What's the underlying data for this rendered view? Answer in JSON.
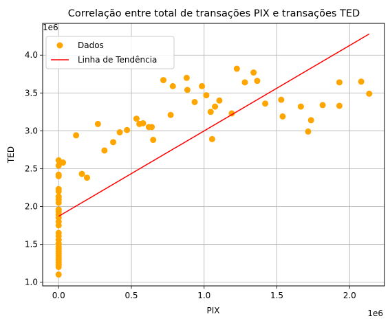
{
  "chart_data": {
    "type": "scatter",
    "title": "Correlação entre total de transações PIX e transações TED",
    "xlabel": "PIX",
    "ylabel": "TED",
    "x_offset_text": "1e6",
    "y_offset_text": "1e6",
    "xlim": [
      -110000,
      2240000
    ],
    "ylim": [
      950000,
      4420000
    ],
    "xticks": [
      0,
      500000,
      1000000,
      1500000,
      2000000
    ],
    "xtick_labels": [
      "0.0",
      "0.5",
      "1.0",
      "1.5",
      "2.0"
    ],
    "yticks": [
      1000000,
      1500000,
      2000000,
      2500000,
      3000000,
      3500000,
      4000000
    ],
    "ytick_labels": [
      "1.0",
      "1.5",
      "2.0",
      "2.5",
      "3.0",
      "3.5",
      "4.0"
    ],
    "grid": true,
    "legend_position": "top-left",
    "series": [
      {
        "name": "Dados",
        "kind": "scatter",
        "color": "#FFA500",
        "points": [
          [
            0,
            1100000
          ],
          [
            0,
            1200000
          ],
          [
            0,
            1230000
          ],
          [
            0,
            1260000
          ],
          [
            0,
            1290000
          ],
          [
            0,
            1320000
          ],
          [
            0,
            1350000
          ],
          [
            0,
            1380000
          ],
          [
            0,
            1410000
          ],
          [
            0,
            1440000
          ],
          [
            0,
            1470000
          ],
          [
            0,
            1510000
          ],
          [
            0,
            1560000
          ],
          [
            0,
            1610000
          ],
          [
            0,
            1650000
          ],
          [
            0,
            1750000
          ],
          [
            0,
            1800000
          ],
          [
            0,
            1850000
          ],
          [
            0,
            1890000
          ],
          [
            0,
            1930000
          ],
          [
            0,
            1960000
          ],
          [
            0,
            2050000
          ],
          [
            0,
            2090000
          ],
          [
            0,
            2130000
          ],
          [
            0,
            2200000
          ],
          [
            0,
            2230000
          ],
          [
            0,
            2400000
          ],
          [
            0,
            2420000
          ],
          [
            0,
            2540000
          ],
          [
            0,
            2610000
          ],
          [
            30000,
            2580000
          ],
          [
            120000,
            2940000
          ],
          [
            160000,
            2430000
          ],
          [
            195000,
            2380000
          ],
          [
            270000,
            3090000
          ],
          [
            315000,
            2740000
          ],
          [
            375000,
            2850000
          ],
          [
            420000,
            2980000
          ],
          [
            470000,
            3010000
          ],
          [
            535000,
            3160000
          ],
          [
            555000,
            3090000
          ],
          [
            580000,
            3100000
          ],
          [
            620000,
            3050000
          ],
          [
            640000,
            3050000
          ],
          [
            650000,
            2880000
          ],
          [
            720000,
            3670000
          ],
          [
            770000,
            3210000
          ],
          [
            785000,
            3590000
          ],
          [
            880000,
            3700000
          ],
          [
            885000,
            3540000
          ],
          [
            935000,
            3380000
          ],
          [
            985000,
            3590000
          ],
          [
            1015000,
            3470000
          ],
          [
            1045000,
            3250000
          ],
          [
            1055000,
            2890000
          ],
          [
            1075000,
            3320000
          ],
          [
            1105000,
            3400000
          ],
          [
            1190000,
            3230000
          ],
          [
            1225000,
            3820000
          ],
          [
            1280000,
            3640000
          ],
          [
            1340000,
            3770000
          ],
          [
            1365000,
            3660000
          ],
          [
            1420000,
            3360000
          ],
          [
            1530000,
            3410000
          ],
          [
            1540000,
            3190000
          ],
          [
            1665000,
            3320000
          ],
          [
            1715000,
            2990000
          ],
          [
            1735000,
            3140000
          ],
          [
            1815000,
            3340000
          ],
          [
            1930000,
            3640000
          ],
          [
            1930000,
            3330000
          ],
          [
            2080000,
            3650000
          ],
          [
            2135000,
            3490000
          ]
        ]
      },
      {
        "name": "Linha de Tendência",
        "kind": "line",
        "color": "#FF0000",
        "points": [
          [
            0,
            1870000
          ],
          [
            2135000,
            4280000
          ]
        ]
      }
    ]
  }
}
